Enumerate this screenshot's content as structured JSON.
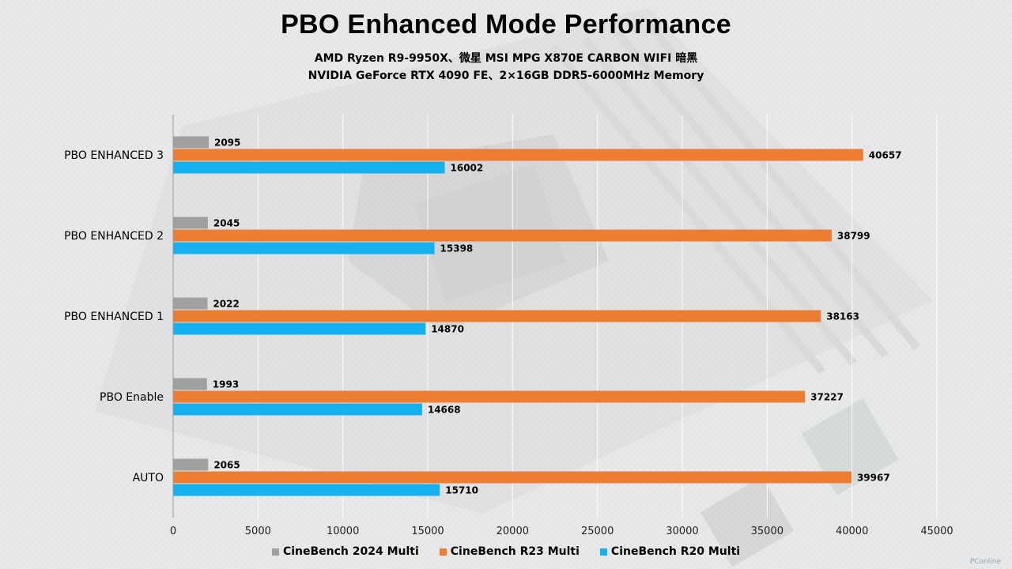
{
  "title": "PBO Enhanced Mode Performance",
  "subtitle_line1": "AMD Ryzen R9-9950X、微星 MSI MPG X870E CARBON WIFI 暗黑",
  "subtitle_line2": "NVIDIA GeForce RTX 4090 FE、2×16GB DDR5-6000MHz Memory",
  "watermark": "PConline",
  "chart_data": {
    "type": "bar",
    "orientation": "horizontal",
    "title": "PBO Enhanced Mode Performance",
    "categories": [
      "PBO ENHANCED 3",
      "PBO ENHANCED 2",
      "PBO ENHANCED 1",
      "PBO Enable",
      "AUTO"
    ],
    "series": [
      {
        "name": "CineBench 2024 Multi",
        "color": "#a0a0a0",
        "values": [
          2095,
          2045,
          2022,
          1993,
          2065
        ]
      },
      {
        "name": "CineBench R23 Multi",
        "color": "#ed7d31",
        "values": [
          40657,
          38799,
          38163,
          37227,
          39967
        ]
      },
      {
        "name": "CineBench R20 Multi",
        "color": "#14b0f0",
        "values": [
          16002,
          15398,
          14870,
          14668,
          15710
        ]
      }
    ],
    "xlim": [
      0,
      45000
    ],
    "xticks": [
      0,
      5000,
      10000,
      15000,
      20000,
      25000,
      30000,
      35000,
      40000,
      45000
    ],
    "grid": true,
    "legend_position": "bottom"
  }
}
